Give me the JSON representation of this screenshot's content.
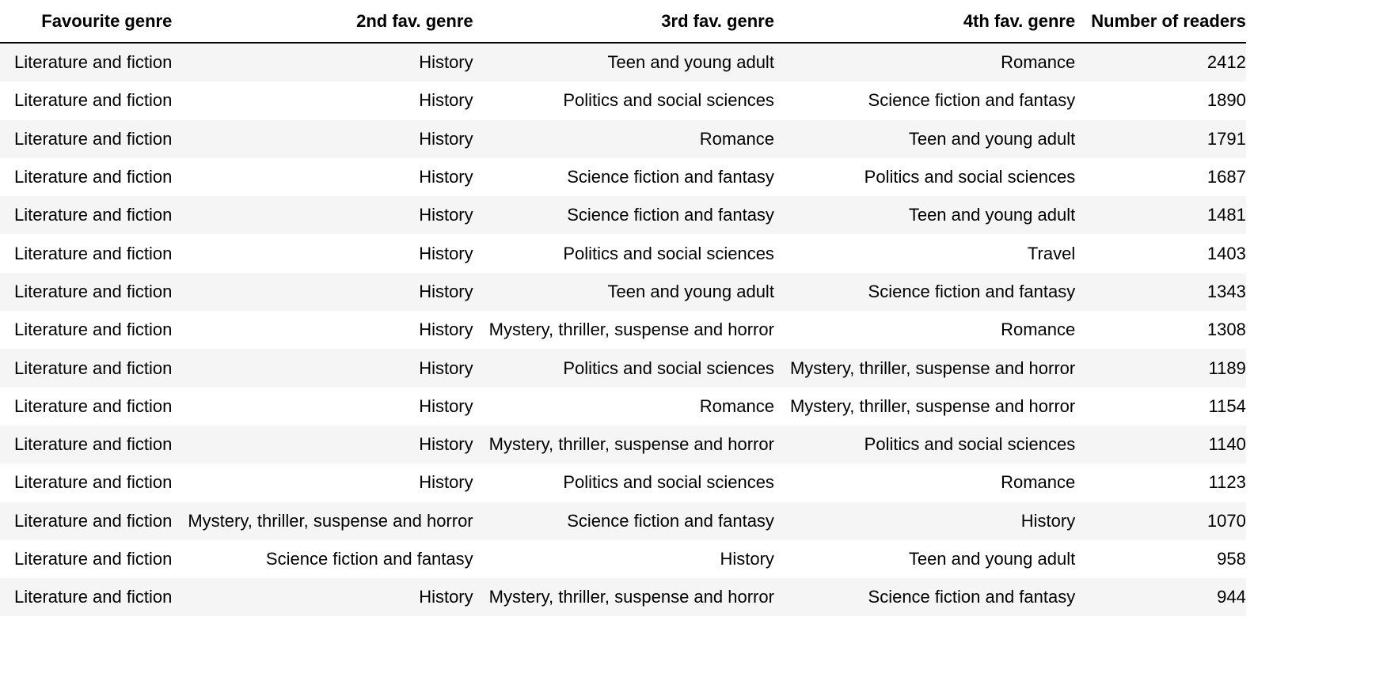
{
  "chart_data": {
    "type": "table",
    "columns": [
      "Favourite genre",
      "2nd fav. genre",
      "3rd fav. genre",
      "4th fav. genre",
      "Number of readers"
    ],
    "rows": [
      [
        "Literature and fiction",
        "History",
        "Teen and young adult",
        "Romance",
        "2412"
      ],
      [
        "Literature and fiction",
        "History",
        "Politics and social sciences",
        "Science fiction and fantasy",
        "1890"
      ],
      [
        "Literature and fiction",
        "History",
        "Romance",
        "Teen and young adult",
        "1791"
      ],
      [
        "Literature and fiction",
        "History",
        "Science fiction and fantasy",
        "Politics and social sciences",
        "1687"
      ],
      [
        "Literature and fiction",
        "History",
        "Science fiction and fantasy",
        "Teen and young adult",
        "1481"
      ],
      [
        "Literature and fiction",
        "History",
        "Politics and social sciences",
        "Travel",
        "1403"
      ],
      [
        "Literature and fiction",
        "History",
        "Teen and young adult",
        "Science fiction and fantasy",
        "1343"
      ],
      [
        "Literature and fiction",
        "History",
        "Mystery, thriller, suspense and horror",
        "Romance",
        "1308"
      ],
      [
        "Literature and fiction",
        "History",
        "Politics and social sciences",
        "Mystery, thriller, suspense and horror",
        "1189"
      ],
      [
        "Literature and fiction",
        "History",
        "Romance",
        "Mystery, thriller, suspense and horror",
        "1154"
      ],
      [
        "Literature and fiction",
        "History",
        "Mystery, thriller, suspense and horror",
        "Politics and social sciences",
        "1140"
      ],
      [
        "Literature and fiction",
        "History",
        "Politics and social sciences",
        "Romance",
        "1123"
      ],
      [
        "Literature and fiction",
        "Mystery, thriller, suspense and horror",
        "Science fiction and fantasy",
        "History",
        "1070"
      ],
      [
        "Literature and fiction",
        "Science fiction and fantasy",
        "History",
        "Teen and young adult",
        "958"
      ],
      [
        "Literature and fiction",
        "History",
        "Mystery, thriller, suspense and horror",
        "Science fiction and fantasy",
        "944"
      ]
    ]
  }
}
